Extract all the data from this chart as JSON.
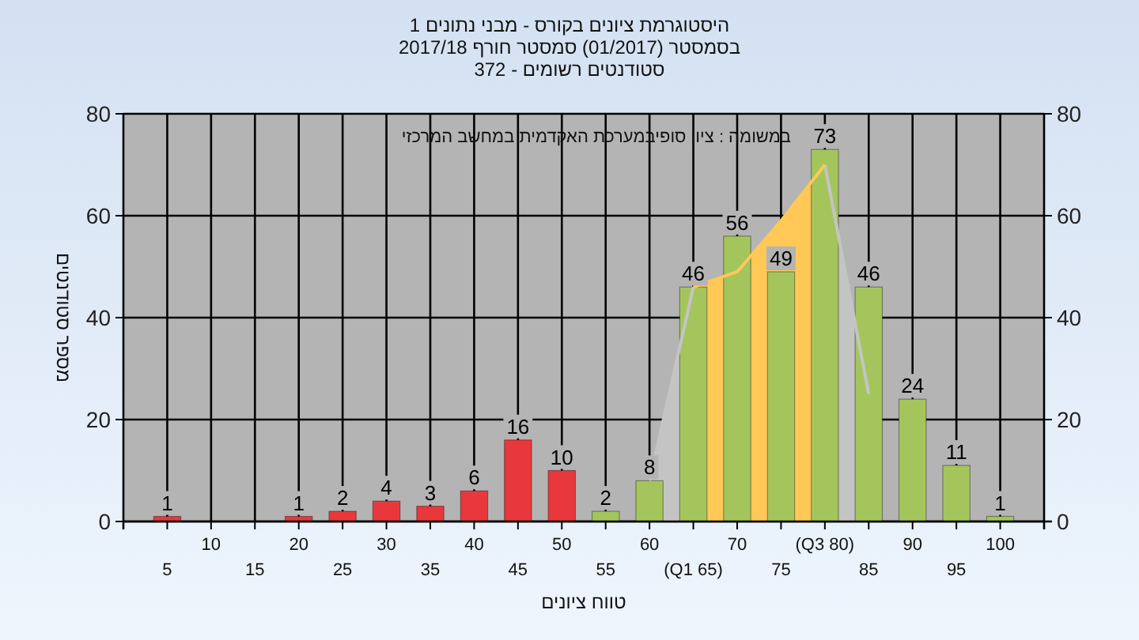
{
  "chart_data": {
    "type": "bar",
    "title": "היסטוגרמת ציונים בקורס - מבני נתונים 1",
    "subtitle": "בסמסטר (01/2017) סמסטר חורף 2017/18",
    "annotations": [
      "סטודנטים רשומים - 372",
      "במשומה : ציון סופיבמערכת האקדמית במחשב המרכזי"
    ],
    "xlabel": "טווח ציונים",
    "ylabel": "מספר סטודנטים",
    "categories": [
      "5",
      "10",
      "15",
      "20",
      "25",
      "30",
      "35",
      "40",
      "45",
      "50",
      "55",
      "60",
      "(Q1 65)",
      "70",
      "75",
      "(Q3 80)",
      "85",
      "90",
      "95",
      "100"
    ],
    "series": [
      {
        "type": "area",
        "color": "#c4c4c4",
        "values": [
          null,
          null,
          null,
          null,
          null,
          null,
          null,
          null,
          null,
          null,
          null,
          8,
          46,
          null,
          null,
          70,
          25,
          null,
          null,
          null
        ]
      },
      {
        "type": "area",
        "color": "#ffc857",
        "values": [
          null,
          null,
          null,
          null,
          null,
          null,
          null,
          null,
          null,
          null,
          null,
          null,
          46,
          49,
          59,
          70,
          null,
          null,
          null,
          null
        ]
      },
      {
        "colors": [
          "#e8383c",
          "#e8383c",
          "#e8383c",
          "#e8383c",
          "#e8383c",
          "#e8383c",
          "#e8383c",
          "#e8383c",
          "#e8383c",
          "#e8383c",
          "#a4c55c",
          "#a4c55c",
          "#a4c55c",
          "#a4c55c",
          "#a4c55c",
          "#a4c55c",
          "#a4c55c",
          "#a4c55c",
          "#a4c55c",
          "#a4c55c"
        ],
        "values": [
          1,
          0,
          0,
          1,
          2,
          4,
          3,
          6,
          16,
          10,
          2,
          8,
          46,
          56,
          49,
          73,
          46,
          24,
          11,
          1
        ],
        "value_labels": [
          "1",
          null,
          null,
          "1",
          "2",
          "4",
          "3",
          "6",
          "16",
          "10",
          "2",
          "8",
          "46",
          "56",
          "49",
          "73",
          "46",
          "24",
          "11",
          "1"
        ]
      }
    ],
    "ylim": [
      0,
      80
    ],
    "yticks": [
      0,
      20,
      40,
      60,
      80
    ],
    "y2lim": [
      0,
      80
    ],
    "y2ticks": [
      0,
      20,
      40,
      60,
      80
    ],
    "grid": true
  }
}
